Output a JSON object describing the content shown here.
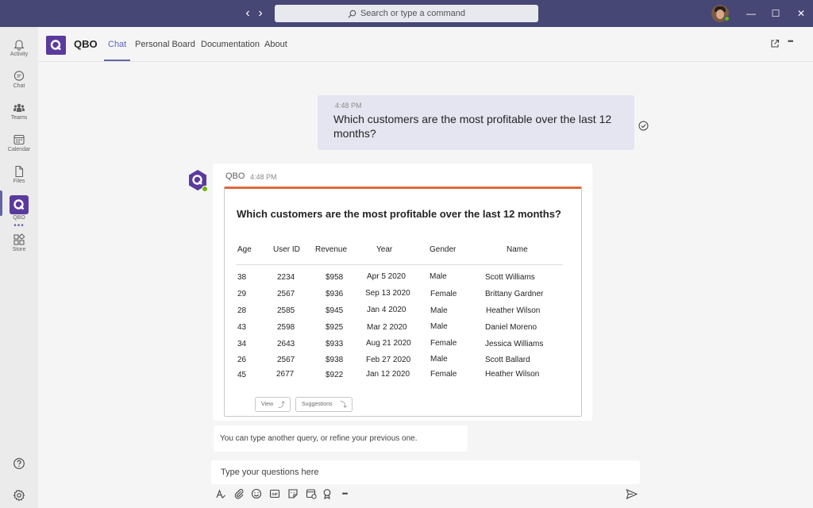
{
  "titlebar": {
    "search_placeholder": "Search or type a command",
    "back_glyph": "‹",
    "forward_glyph": "›",
    "minimize_glyph": "—",
    "maximize_glyph": "☐",
    "close_glyph": "✕"
  },
  "rail": {
    "items": [
      {
        "label": "Activity",
        "icon": "bell-icon"
      },
      {
        "label": "Chat",
        "icon": "chat-icon"
      },
      {
        "label": "Teams",
        "icon": "teams-icon"
      },
      {
        "label": "Calendar",
        "icon": "calendar-icon"
      },
      {
        "label": "Files",
        "icon": "file-icon"
      },
      {
        "label": "QBO",
        "icon": "qbo-app-icon"
      },
      {
        "label": "Store",
        "icon": "store-icon"
      }
    ],
    "more_glyph": "•••"
  },
  "header": {
    "app_title": "QBO",
    "tabs": [
      {
        "label": "Chat",
        "active": true
      },
      {
        "label": "Personal Board",
        "active": false
      },
      {
        "label": "Documentation",
        "active": false
      },
      {
        "label": "About",
        "active": false
      }
    ],
    "popout_glyph": "⧉",
    "more_glyph": "•••"
  },
  "conversation": {
    "user_message": {
      "time": "4:48 PM",
      "text": "Which customers are the most profitable over the last 12 months?"
    },
    "bot_message": {
      "sender": "QBO",
      "time": "4:48 PM",
      "card": {
        "title": "Which customers are the most profitable over the last 12 months?",
        "columns": [
          "Age",
          "User ID",
          "Revenue",
          "Year",
          "Gender",
          "Name"
        ],
        "rows": [
          [
            "38",
            "2234",
            "$958",
            "Apr 5 2020",
            "Male",
            "Scott Williams"
          ],
          [
            "29",
            "2567",
            "$936",
            "Sep 13 2020",
            "Female",
            "Brittany Gardner"
          ],
          [
            "28",
            "2585",
            "$945",
            "Jan 4 2020",
            "Male",
            "Heather Wilson"
          ],
          [
            "43",
            "2598",
            "$925",
            "Mar 2 2020",
            "Male",
            "Daniel Moreno"
          ],
          [
            "34",
            "2643",
            "$933",
            "Aug 21 2020",
            "Female",
            "Jessica Williams"
          ],
          [
            "26",
            "2567",
            "$938",
            "Feb 27 2020",
            "Male",
            "Scott Ballard"
          ],
          [
            "45",
            "2677",
            "$922",
            "Jan 12 2020",
            "Female",
            "Heather Wilson"
          ]
        ],
        "buttons": {
          "view": "View",
          "suggestions": "Suggestions"
        }
      }
    },
    "hint": "You can type another query, or refine your previous one."
  },
  "compose": {
    "placeholder": "Type your questions here",
    "tools": [
      "format-icon",
      "attach-icon",
      "emoji-icon",
      "gif-icon",
      "sticker-icon",
      "schedule-meeting-icon",
      "praise-icon",
      "more-options-icon"
    ]
  },
  "colors": {
    "titlebar": "#464775",
    "accent": "#6264a7",
    "qbo_brand": "#5b3a9e",
    "card_accent": "#e0683c",
    "presence": "#6bb700"
  }
}
